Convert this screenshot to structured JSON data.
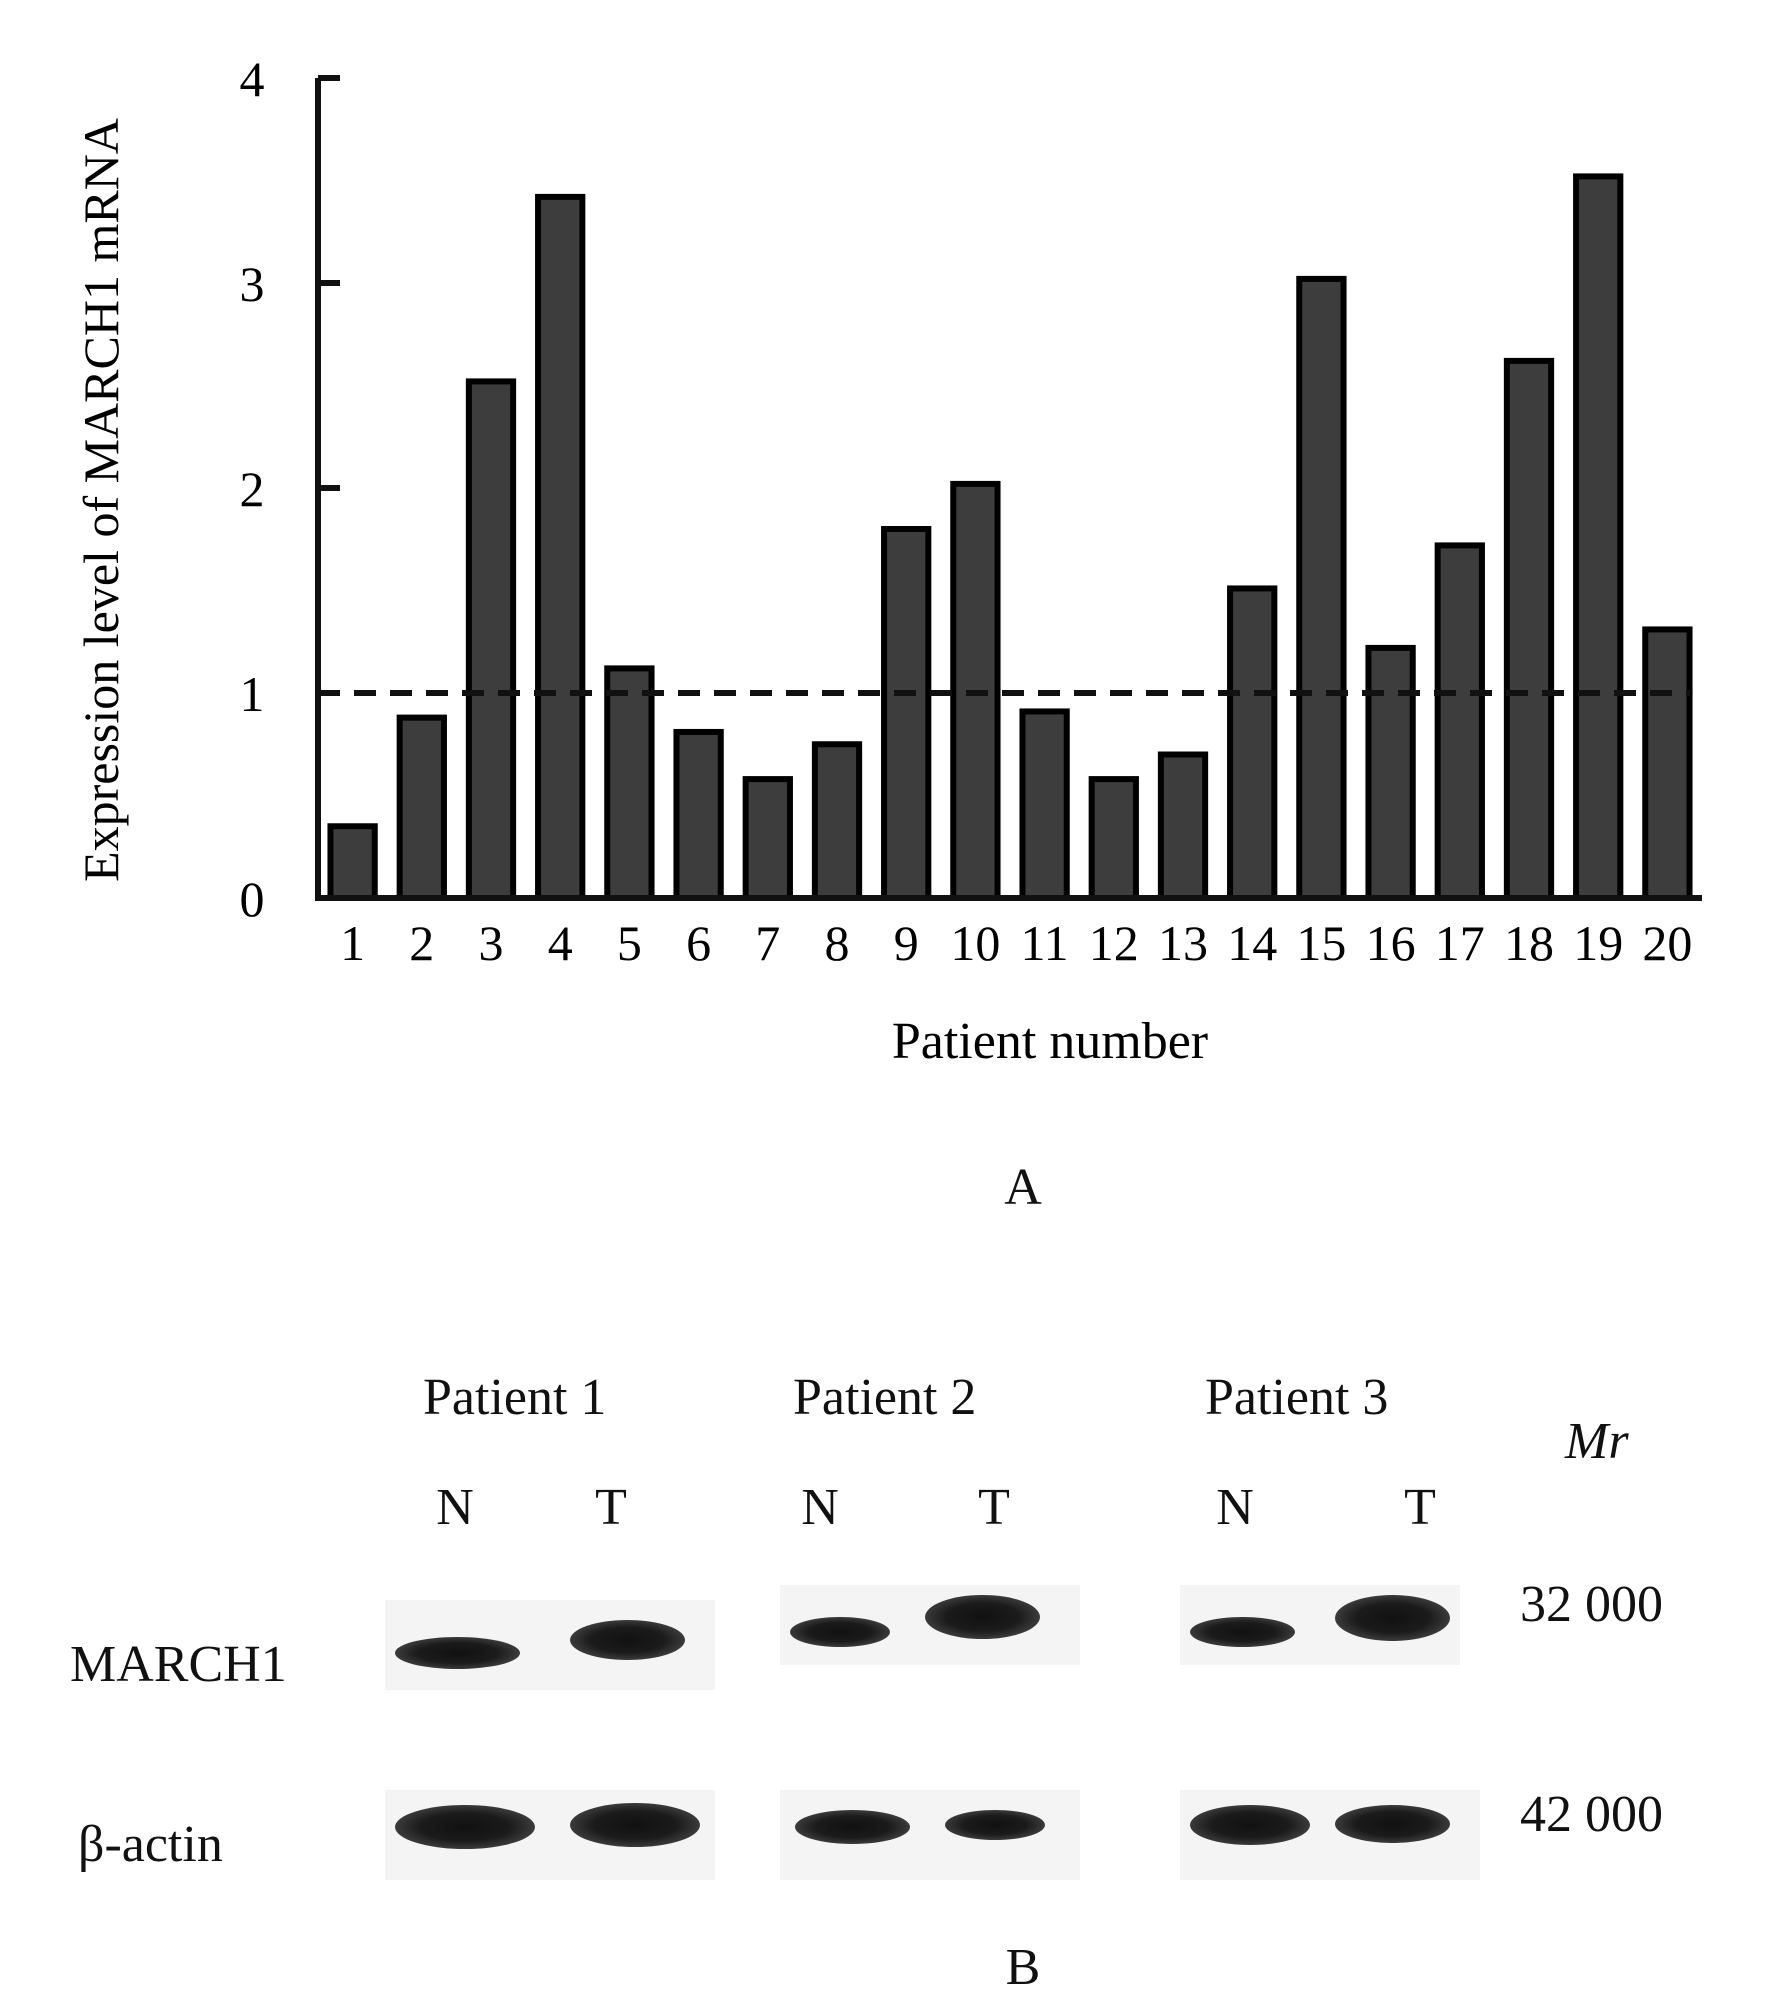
{
  "chart_data": {
    "type": "bar",
    "ylabel": "Expression level of MARCH1 mRNA",
    "xlabel": "Patient number",
    "categories": [
      "1",
      "2",
      "3",
      "4",
      "5",
      "6",
      "7",
      "8",
      "9",
      "10",
      "11",
      "12",
      "13",
      "14",
      "15",
      "16",
      "17",
      "18",
      "19",
      "20"
    ],
    "values": [
      0.35,
      0.88,
      2.52,
      3.42,
      1.12,
      0.81,
      0.58,
      0.75,
      1.8,
      2.02,
      0.91,
      0.58,
      0.7,
      1.51,
      3.02,
      1.22,
      1.72,
      2.62,
      3.52,
      1.31
    ],
    "ylim": [
      0,
      4
    ],
    "yticks": [
      "0",
      "1",
      "2",
      "3",
      "4"
    ],
    "reference_line": 1,
    "bar_color": "#3d3d3d",
    "grid": false
  },
  "panel_a_label": "A",
  "panel_b_label": "B",
  "western_blot": {
    "patients": [
      "Patient 1",
      "Patient 2",
      "Patient 3"
    ],
    "lanes": [
      "N",
      "T",
      "N",
      "T",
      "N",
      "T"
    ],
    "mr_label": "Mr",
    "rows": [
      {
        "label": "MARCH1",
        "mr": "32  000",
        "intensities": [
          0.75,
          0.9,
          0.7,
          1.0,
          0.7,
          1.0
        ]
      },
      {
        "label": "β-actin",
        "mr": "42  000",
        "intensities": [
          1.0,
          1.0,
          0.9,
          0.85,
          1.0,
          0.95
        ]
      }
    ]
  }
}
